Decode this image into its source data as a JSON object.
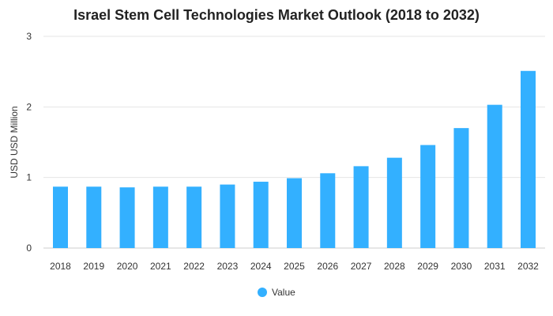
{
  "chart_data": {
    "type": "bar",
    "title": "Israel Stem Cell Technologies Market Outlook (2018 to 2032)",
    "xlabel": "",
    "ylabel": "USD USD Million",
    "ylim": [
      0,
      3
    ],
    "yticks": [
      0,
      1,
      2,
      3
    ],
    "categories": [
      "2018",
      "2019",
      "2020",
      "2021",
      "2022",
      "2023",
      "2024",
      "2025",
      "2026",
      "2027",
      "2028",
      "2029",
      "2030",
      "2031",
      "2032"
    ],
    "series": [
      {
        "name": "Value",
        "color": "#33b0ff",
        "values": [
          0.87,
          0.87,
          0.86,
          0.87,
          0.87,
          0.9,
          0.94,
          0.99,
          1.06,
          1.16,
          1.28,
          1.46,
          1.7,
          2.03,
          2.51
        ]
      }
    ],
    "grid": true,
    "legend_position": "bottom-center"
  }
}
